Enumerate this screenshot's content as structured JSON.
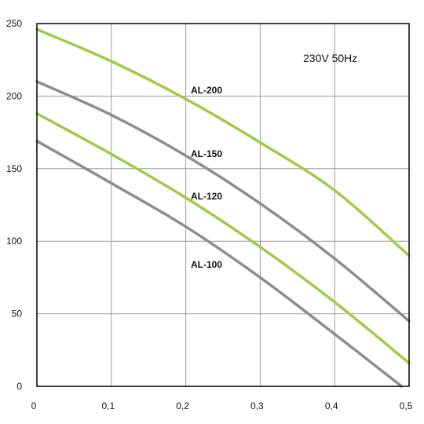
{
  "chart_data": {
    "type": "line",
    "xlim": [
      0,
      0.5
    ],
    "ylim": [
      0,
      250
    ],
    "x_ticks": [
      "0",
      "0,1",
      "0,2",
      "0,3",
      "0,4",
      "0,5"
    ],
    "y_ticks": [
      "0",
      "50",
      "100",
      "150",
      "200",
      "250"
    ],
    "grid": true,
    "annotation": "230V  50Hz",
    "series": [
      {
        "name": "AL-200",
        "color": "#9dcb4a",
        "x": [
          0,
          0.1,
          0.2,
          0.3,
          0.4,
          0.5
        ],
        "y": [
          246,
          224,
          198,
          168,
          135,
          90
        ]
      },
      {
        "name": "AL-150",
        "color": "#8d8d8d",
        "x": [
          0,
          0.1,
          0.2,
          0.3,
          0.4,
          0.5
        ],
        "y": [
          210,
          187,
          159,
          126,
          88,
          45
        ]
      },
      {
        "name": "AL-120",
        "color": "#9dcb4a",
        "x": [
          0,
          0.1,
          0.2,
          0.3,
          0.4,
          0.5
        ],
        "y": [
          188,
          160,
          130,
          96,
          58,
          16
        ]
      },
      {
        "name": "AL-100",
        "color": "#8d8d8d",
        "x": [
          0,
          0.1,
          0.2,
          0.3,
          0.4,
          0.49
        ],
        "y": [
          169,
          140,
          110,
          75,
          36,
          0
        ]
      }
    ]
  }
}
